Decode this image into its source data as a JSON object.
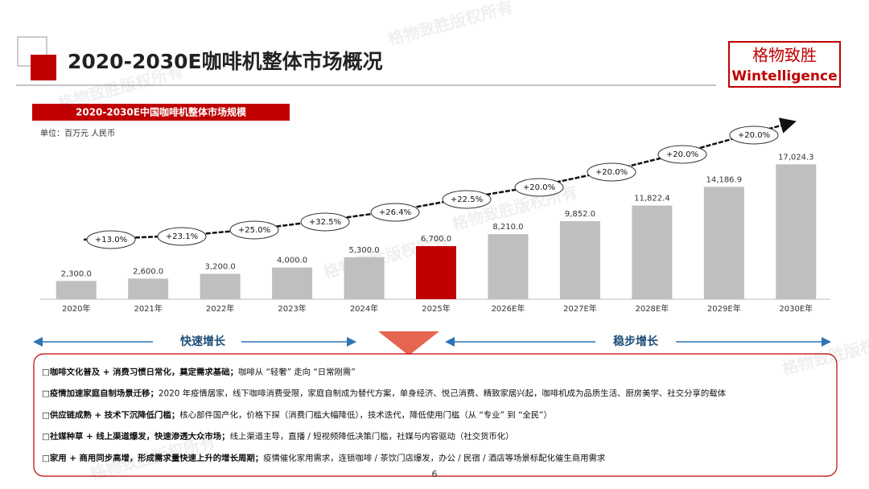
{
  "slide_title": "2020-2030E咖啡机整体市场概况",
  "logo": {
    "cn": "格物致胜",
    "en": "Wintelligence"
  },
  "watermark": "格物致胜版权所有",
  "chart_data": {
    "type": "bar",
    "title": "2020-2030E中国咖啡机整体市场规模",
    "unit": "单位：百万元 人民币",
    "categories": [
      "2020年",
      "2021年",
      "2022年",
      "2023年",
      "2024年",
      "2025年",
      "2026E年",
      "2027E年",
      "2028E年",
      "2029E年",
      "2030E年"
    ],
    "values": [
      2300,
      2600,
      3200,
      4000,
      5300,
      6700,
      8210,
      9852,
      11822.4,
      14186.9,
      17024.3
    ],
    "value_labels": [
      "2,300.0",
      "2,600.0",
      "3,200.0",
      "4,000.0",
      "5,300.0",
      "6,700.0",
      "8,210.0",
      "9,852.0",
      "11,822.4",
      "14,186.9",
      "17,024.3"
    ],
    "colors": [
      "#bfbfbf",
      "#bfbfbf",
      "#bfbfbf",
      "#bfbfbf",
      "#bfbfbf",
      "#c00000",
      "#bfbfbf",
      "#bfbfbf",
      "#bfbfbf",
      "#bfbfbf",
      "#bfbfbf"
    ],
    "annotations": [
      "+13.0%",
      "+23.1%",
      "+25.0%",
      "+32.5%",
      "+26.4%",
      "+22.5%",
      "+20.0%",
      "+20.0%",
      "+20.0%",
      "+20.0%"
    ],
    "ylim": [
      0,
      20000
    ]
  },
  "phases": [
    "快速增长",
    "稳步增长"
  ],
  "bullets": [
    {
      "bold": "□咖啡文化普及 + 消费习惯日常化，奠定需求基础；",
      "text": "咖啡从 “轻奢” 走向 “日常刚需”"
    },
    {
      "bold": "□疫情加速家庭自制场景迁移；",
      "text": "2020 年疫情居家，线下咖啡消费受限，家庭自制成为替代方案，单身经济、悦己消费、精致家居兴起，咖啡机成为品质生活、厨房美学、社交分享的载体"
    },
    {
      "bold": "□供应链成熟 + 技术下沉降低门槛；",
      "text": "核心部件国产化，价格下探（消费门槛大幅降低），技术迭代，降低使用门槛（从 “专业” 到 “全民”）"
    },
    {
      "bold": "□社媒种草 + 线上渠道爆发，快速渗透大众市场；",
      "text": "线上渠道主导，直播 / 短视频降低决策门槛，社媒与内容驱动（社交货币化）"
    },
    {
      "bold": "□家用 + 商用同步高增，形成需求量快速上升的增长周期；",
      "text": "疫情催化家用需求，连锁咖啡 / 茶饮门店爆发，办公 / 民宿 / 酒店等场景标配化催生商用需求"
    }
  ],
  "page_number": "6"
}
